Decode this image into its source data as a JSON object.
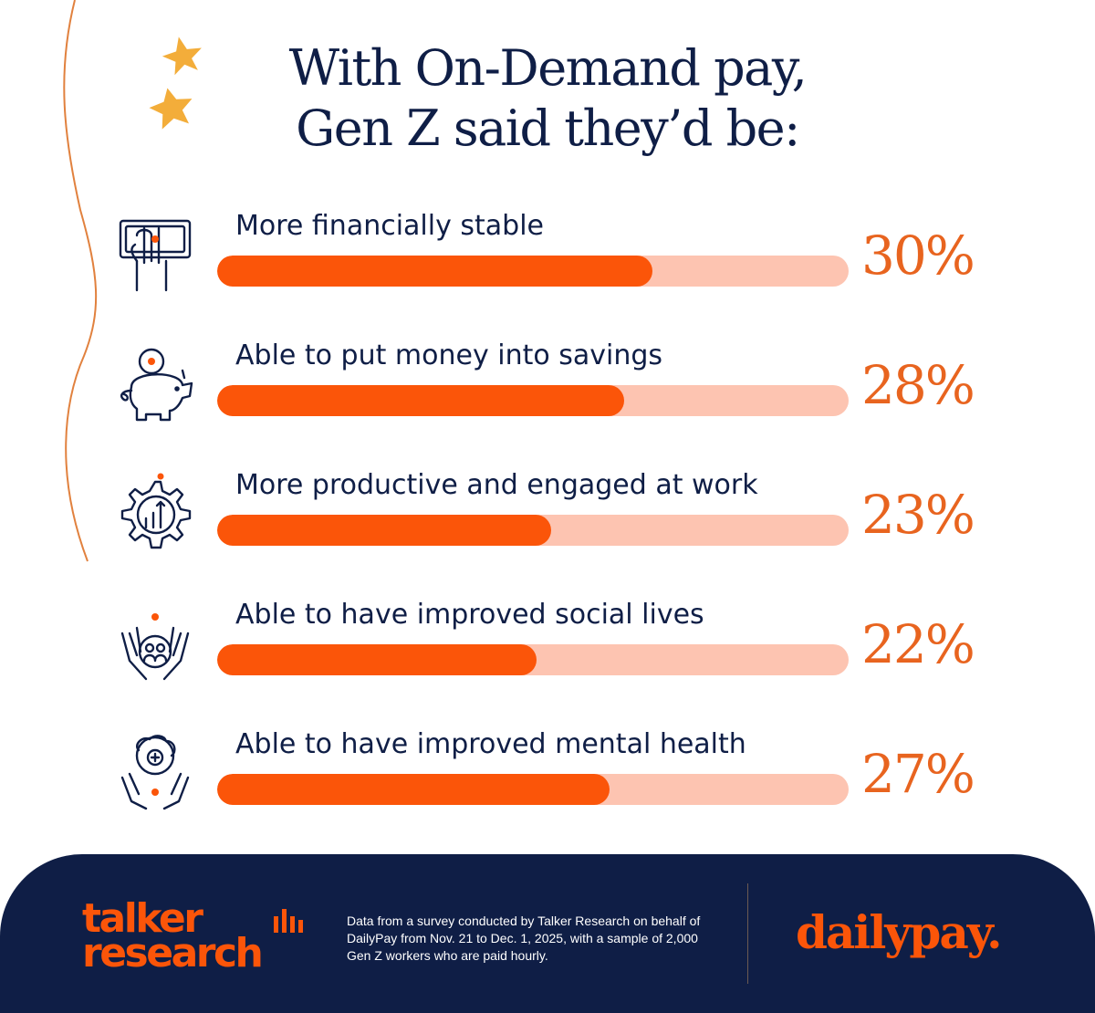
{
  "title_lines": [
    "With On-Demand pay,",
    "Gen Z said they’d be:"
  ],
  "colors": {
    "navy": "#0f1e46",
    "accent": "#fb5509",
    "track": "#fdc4b1",
    "star": "#f3ad3a",
    "curve": "#e1813e",
    "pct_text": "#e8641f",
    "footer_bg": "#0f1e46"
  },
  "chart_data": {
    "type": "bar",
    "orientation": "horizontal",
    "title": "With On-Demand pay, Gen Z said they’d be:",
    "xlim": [
      0,
      100
    ],
    "grid": false,
    "categories": [
      "More financially stable",
      "Able to put money into savings",
      "More productive and engaged at work",
      "Able to have improved social lives",
      "Able to have improved mental health"
    ],
    "values": [
      30,
      28,
      23,
      22,
      27
    ],
    "value_labels": [
      "30%",
      "28%",
      "23%",
      "22%",
      "27%"
    ],
    "icons": [
      "money-hand-icon",
      "piggy-bank-icon",
      "gear-growth-icon",
      "hands-community-icon",
      "brain-hands-icon"
    ]
  },
  "footer": {
    "brand_left_line1": "talker",
    "brand_left_line2": "research",
    "note": "Data from a survey conducted by Talker Research on behalf of DailyPay from Nov. 21 to Dec. 1, 2025, with a sample of 2,000 Gen Z workers who are paid hourly.",
    "brand_right": "dailypay."
  }
}
